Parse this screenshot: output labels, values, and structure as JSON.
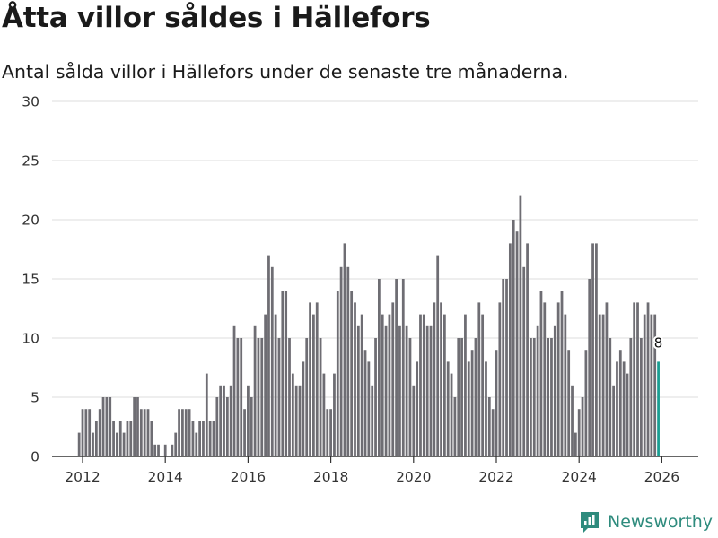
{
  "header": {
    "title": "Åtta villor såldes i Hällefors",
    "subtitle": "Antal sålda villor i Hällefors under de senaste tre månaderna."
  },
  "brand": {
    "name": "Newsworthy",
    "color": "#2e8b7d"
  },
  "colors": {
    "bar": "#6e6d73",
    "highlight": "#1a9e92",
    "grid": "#dedede"
  },
  "chart_data": {
    "type": "bar",
    "title": "Åtta villor såldes i Hällefors",
    "subtitle": "Antal sålda villor i Hällefors under de senaste tre månaderna.",
    "xlabel": "",
    "ylabel": "",
    "ylim": [
      0,
      30
    ],
    "yticks": [
      0,
      5,
      10,
      15,
      20,
      25,
      30
    ],
    "xticks": [
      2012,
      2014,
      2016,
      2018,
      2020,
      2022,
      2024,
      2026
    ],
    "x_start": "2011-12",
    "frequency": "monthly",
    "values": [
      2,
      4,
      4,
      4,
      2,
      3,
      4,
      5,
      5,
      5,
      3,
      2,
      3,
      2,
      3,
      3,
      5,
      5,
      4,
      4,
      4,
      3,
      1,
      1,
      0,
      1,
      0,
      1,
      2,
      4,
      4,
      4,
      4,
      3,
      2,
      3,
      3,
      7,
      3,
      3,
      5,
      6,
      6,
      5,
      6,
      11,
      10,
      10,
      4,
      6,
      5,
      11,
      10,
      10,
      12,
      17,
      16,
      12,
      10,
      14,
      14,
      10,
      7,
      6,
      6,
      8,
      10,
      13,
      12,
      13,
      10,
      7,
      4,
      4,
      7,
      14,
      16,
      18,
      16,
      14,
      13,
      11,
      12,
      9,
      8,
      6,
      10,
      15,
      12,
      11,
      12,
      13,
      15,
      11,
      15,
      11,
      10,
      6,
      8,
      12,
      12,
      11,
      11,
      13,
      17,
      13,
      12,
      8,
      7,
      5,
      10,
      10,
      12,
      8,
      9,
      10,
      13,
      12,
      8,
      5,
      4,
      9,
      13,
      15,
      15,
      18,
      20,
      19,
      22,
      16,
      18,
      10,
      10,
      11,
      14,
      13,
      10,
      10,
      11,
      13,
      14,
      12,
      9,
      6,
      2,
      4,
      5,
      9,
      15,
      18,
      18,
      12,
      12,
      13,
      10,
      6,
      8,
      9,
      8,
      7,
      10,
      13,
      13,
      10,
      12,
      13,
      12,
      12,
      8
    ],
    "highlight_last": true,
    "last_value_label": "8"
  }
}
